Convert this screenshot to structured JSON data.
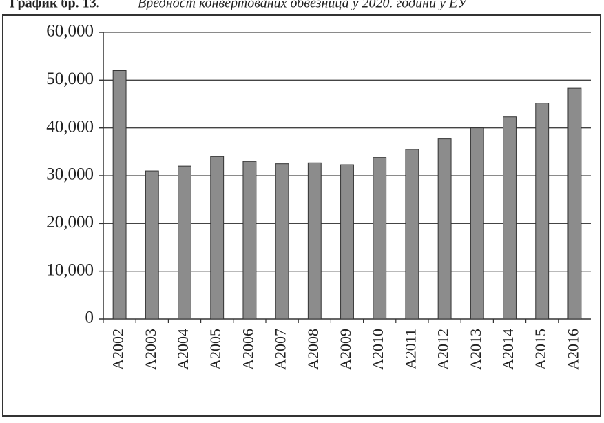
{
  "chart_data": {
    "type": "bar",
    "title": "График бр. 13.",
    "subtitle": "Вредност конвертованих обвезница у 2020. години у ЕУ",
    "categories": [
      "A2002",
      "A2003",
      "A2004",
      "A2005",
      "A2006",
      "A2007",
      "A2008",
      "A2009",
      "A2010",
      "A2011",
      "A2012",
      "A2013",
      "A2014",
      "A2015",
      "A2016"
    ],
    "values": [
      52000,
      31000,
      32000,
      34000,
      33000,
      32500,
      32700,
      32300,
      33800,
      35500,
      37700,
      40000,
      42300,
      45200,
      48300
    ],
    "color": "#8c8c8c",
    "ylim": [
      0,
      60000
    ],
    "yticks": [
      0,
      {
        "value": 10000,
        "label": "10,000"
      },
      {
        "value": 20000,
        "label": "20,000"
      },
      {
        "value": 30000,
        "label": "30,000"
      },
      {
        "value": 40000,
        "label": "40,000"
      },
      {
        "value": 50000,
        "label": "50,000"
      },
      {
        "value": 60000,
        "label": "60,000"
      }
    ],
    "grid": true
  }
}
